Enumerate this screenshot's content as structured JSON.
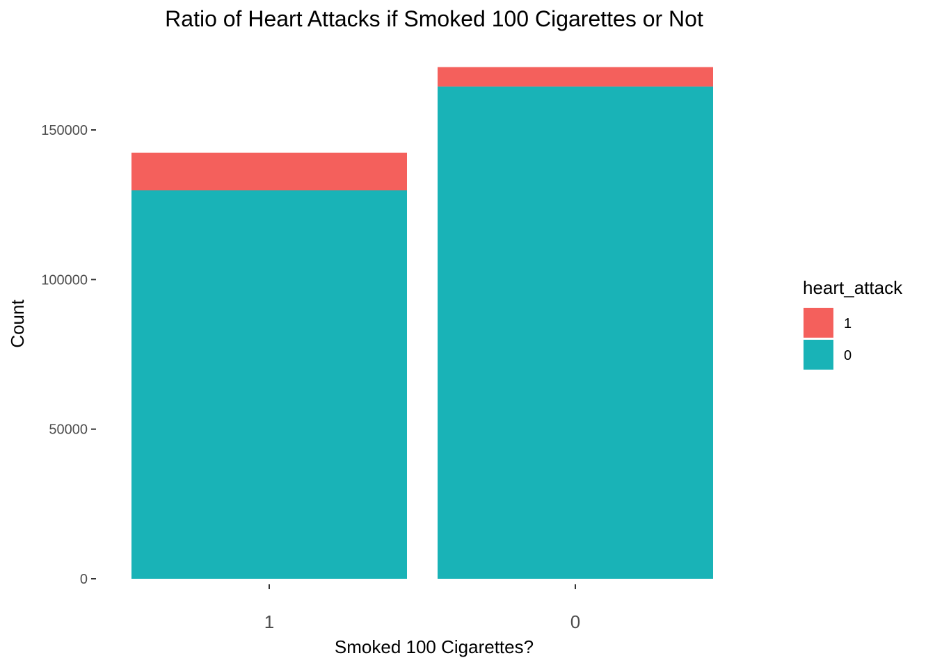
{
  "chart_data": {
    "type": "bar",
    "stacked": true,
    "title": "Ratio of Heart Attacks if Smoked 100 Cigarettes or Not",
    "xlabel": "Smoked 100 Cigarettes?",
    "ylabel": "Count",
    "categories": [
      "1",
      "0"
    ],
    "series": [
      {
        "name": "0",
        "color": "#19B3B7",
        "values": [
          129800,
          164500
        ]
      },
      {
        "name": "1",
        "color": "#F4605C",
        "values": [
          12600,
          6500
        ]
      }
    ],
    "ylim": [
      0,
      170000
    ],
    "yticks": [
      0,
      50000,
      100000,
      150000
    ],
    "ytick_labels": [
      "0",
      "50000",
      "100000",
      "150000"
    ],
    "grid": false,
    "legend": {
      "title": "heart_attack",
      "position": "right",
      "entries": [
        {
          "label": "1",
          "color": "#F4605C"
        },
        {
          "label": "0",
          "color": "#19B3B7"
        }
      ]
    }
  }
}
